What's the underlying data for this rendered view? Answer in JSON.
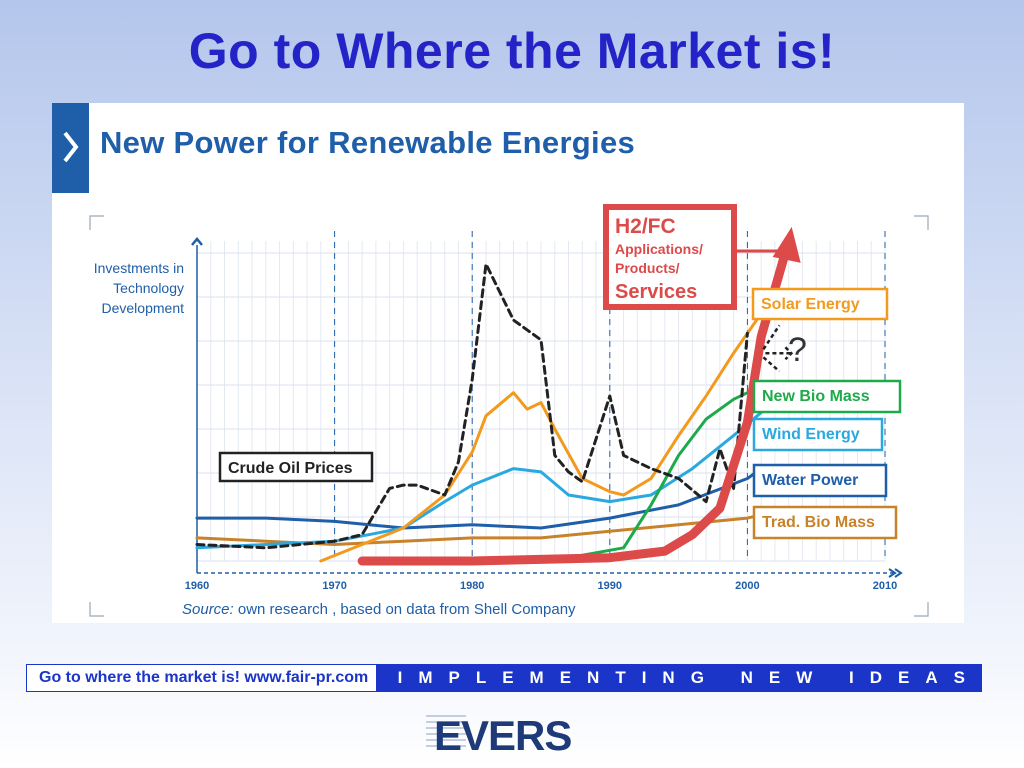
{
  "slide": {
    "title": "Go to Where the Market is!"
  },
  "panel": {
    "heading": "New Power for Renewable Energies",
    "source_label": "Source:",
    "source_text": " own research , based on data from Shell Company"
  },
  "footer": {
    "left_text": "Go to where the market is!   www.fair-pr.com",
    "right_text": "IMPLEMENTING NEW IDEAS"
  },
  "logo": {
    "text": "EVERS"
  },
  "colors": {
    "title": "#2323c8",
    "heading": "#1f5ea8",
    "h2fc": "#dc4a4a",
    "solar": "#f39a1e",
    "biomass_new": "#1eaa4a",
    "wind": "#2aa8e0",
    "water": "#1f5ea8",
    "trad_biomass": "#c8822a",
    "oil": "#222222",
    "footer_blue": "#1a35c8"
  },
  "chart_data": {
    "type": "line",
    "ylabel": "Investments in Technology Development",
    "x_ticks": [
      1960,
      1970,
      1980,
      1990,
      2000,
      2010
    ],
    "xlim": [
      1960,
      2010
    ],
    "ylim": [
      0,
      100
    ],
    "grid": true,
    "annotations": [
      "?"
    ],
    "series": [
      {
        "name": "Crude Oil Prices",
        "color": "#222222",
        "dashed": true,
        "x": [
          1960,
          1965,
          1970,
          1972,
          1974,
          1975,
          1976,
          1978,
          1979,
          1980,
          1981,
          1983,
          1985,
          1986,
          1987,
          1988,
          1990,
          1991,
          1993,
          1995,
          1997,
          1998,
          1999,
          2000
        ],
        "y": [
          5,
          4,
          6,
          8,
          22,
          23,
          23,
          20,
          30,
          55,
          90,
          73,
          67,
          32,
          27,
          24,
          50,
          32,
          28,
          25,
          18,
          34,
          22,
          69
        ]
      },
      {
        "name": "Solar Energy",
        "color": "#f39a1e",
        "x": [
          1969,
          1972,
          1975,
          1978,
          1980,
          1981,
          1983,
          1984,
          1985,
          1986,
          1988,
          1990,
          1991,
          1993,
          1995,
          1997,
          1999,
          2001
        ],
        "y": [
          0,
          5,
          10,
          20,
          33,
          44,
          51,
          46,
          48,
          40,
          25,
          21,
          20,
          25,
          38,
          50,
          63,
          75
        ]
      },
      {
        "name": "New Bio Mass",
        "color": "#1eaa4a",
        "x": [
          1987,
          1991,
          1993,
          1995,
          1997,
          1999,
          2001
        ],
        "y": [
          1,
          4,
          17,
          32,
          43,
          49,
          53
        ]
      },
      {
        "name": "Wind Energy",
        "color": "#2aa8e0",
        "x": [
          1960,
          1965,
          1970,
          1975,
          1978,
          1980,
          1983,
          1985,
          1987,
          1990,
          1993,
          1996,
          1999,
          2001
        ],
        "y": [
          4,
          5,
          6,
          10,
          18,
          23,
          28,
          27,
          20,
          18,
          20,
          28,
          38,
          45
        ]
      },
      {
        "name": "Water Power",
        "color": "#1f5ea8",
        "x": [
          1960,
          1965,
          1970,
          1975,
          1980,
          1985,
          1990,
          1995,
          2000,
          2001
        ],
        "y": [
          13,
          13,
          12,
          10,
          11,
          10,
          13,
          17,
          25,
          28
        ]
      },
      {
        "name": "Trad. Bio Mass",
        "color": "#c8822a",
        "x": [
          1960,
          1965,
          1970,
          1975,
          1980,
          1985,
          1990,
          1995,
          2000,
          2001
        ],
        "y": [
          7,
          6,
          5,
          6,
          7,
          7,
          9,
          11,
          13,
          14
        ]
      },
      {
        "name": "H2/FC Applications/Products/Services",
        "color": "#dc4a4a",
        "x": [
          1972,
          1980,
          1990,
          1994,
          1996,
          1998,
          2000,
          2001,
          2003
        ],
        "y": [
          0,
          0,
          1,
          3,
          8,
          16,
          42,
          68,
          97
        ]
      }
    ]
  }
}
